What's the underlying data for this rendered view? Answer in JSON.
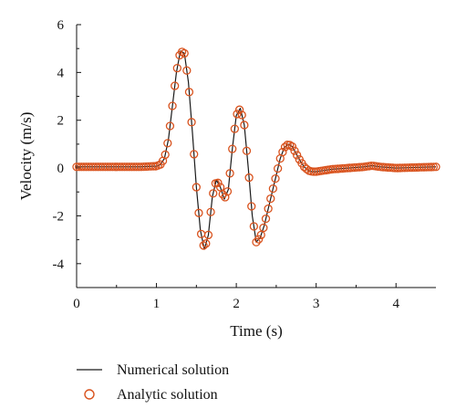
{
  "chart_data": {
    "type": "line",
    "xlabel": "Time (s)",
    "ylabel": "Velocity (m/s)",
    "xlim": [
      0,
      4.5
    ],
    "ylim": [
      -5,
      6
    ],
    "xticks": [
      "0",
      "1",
      "2",
      "3",
      "4"
    ],
    "yticks": [
      "-4",
      "-2",
      "0",
      "2",
      "4",
      "6"
    ],
    "grid": false,
    "legend_position": "bottom-left below plot",
    "series": [
      {
        "name": "Numerical solution",
        "style": "solid line",
        "color": "#1a1a1a",
        "x": [
          0,
          0.2,
          0.4,
          0.6,
          0.8,
          1.0,
          1.05,
          1.1,
          1.15,
          1.2,
          1.25,
          1.3,
          1.35,
          1.4,
          1.45,
          1.5,
          1.55,
          1.6,
          1.65,
          1.7,
          1.75,
          1.8,
          1.85,
          1.9,
          1.95,
          2.0,
          2.05,
          2.1,
          2.15,
          2.2,
          2.25,
          2.3,
          2.35,
          2.4,
          2.45,
          2.5,
          2.55,
          2.6,
          2.65,
          2.7,
          2.75,
          2.8,
          2.85,
          2.9,
          2.95,
          3.0,
          3.1,
          3.2,
          3.4,
          3.6,
          3.7,
          3.8,
          4.0,
          4.2,
          4.5
        ],
        "y": [
          0.05,
          0.05,
          0.05,
          0.05,
          0.05,
          0.08,
          0.15,
          0.4,
          1.2,
          2.6,
          4.0,
          4.9,
          4.8,
          3.6,
          1.5,
          -0.8,
          -2.6,
          -3.4,
          -2.8,
          -1.2,
          -0.5,
          -0.8,
          -1.3,
          -0.9,
          0.8,
          2.2,
          2.5,
          1.8,
          0.0,
          -2.0,
          -3.1,
          -2.9,
          -2.4,
          -1.7,
          -1.0,
          -0.3,
          0.4,
          0.85,
          1.0,
          0.9,
          0.6,
          0.3,
          0.05,
          -0.1,
          -0.15,
          -0.15,
          -0.1,
          -0.05,
          0.0,
          0.05,
          0.1,
          0.05,
          0.0,
          0.02,
          0.05
        ]
      },
      {
        "name": "Analytic solution",
        "style": "open circle markers",
        "color": "#d9531e"
      }
    ]
  }
}
